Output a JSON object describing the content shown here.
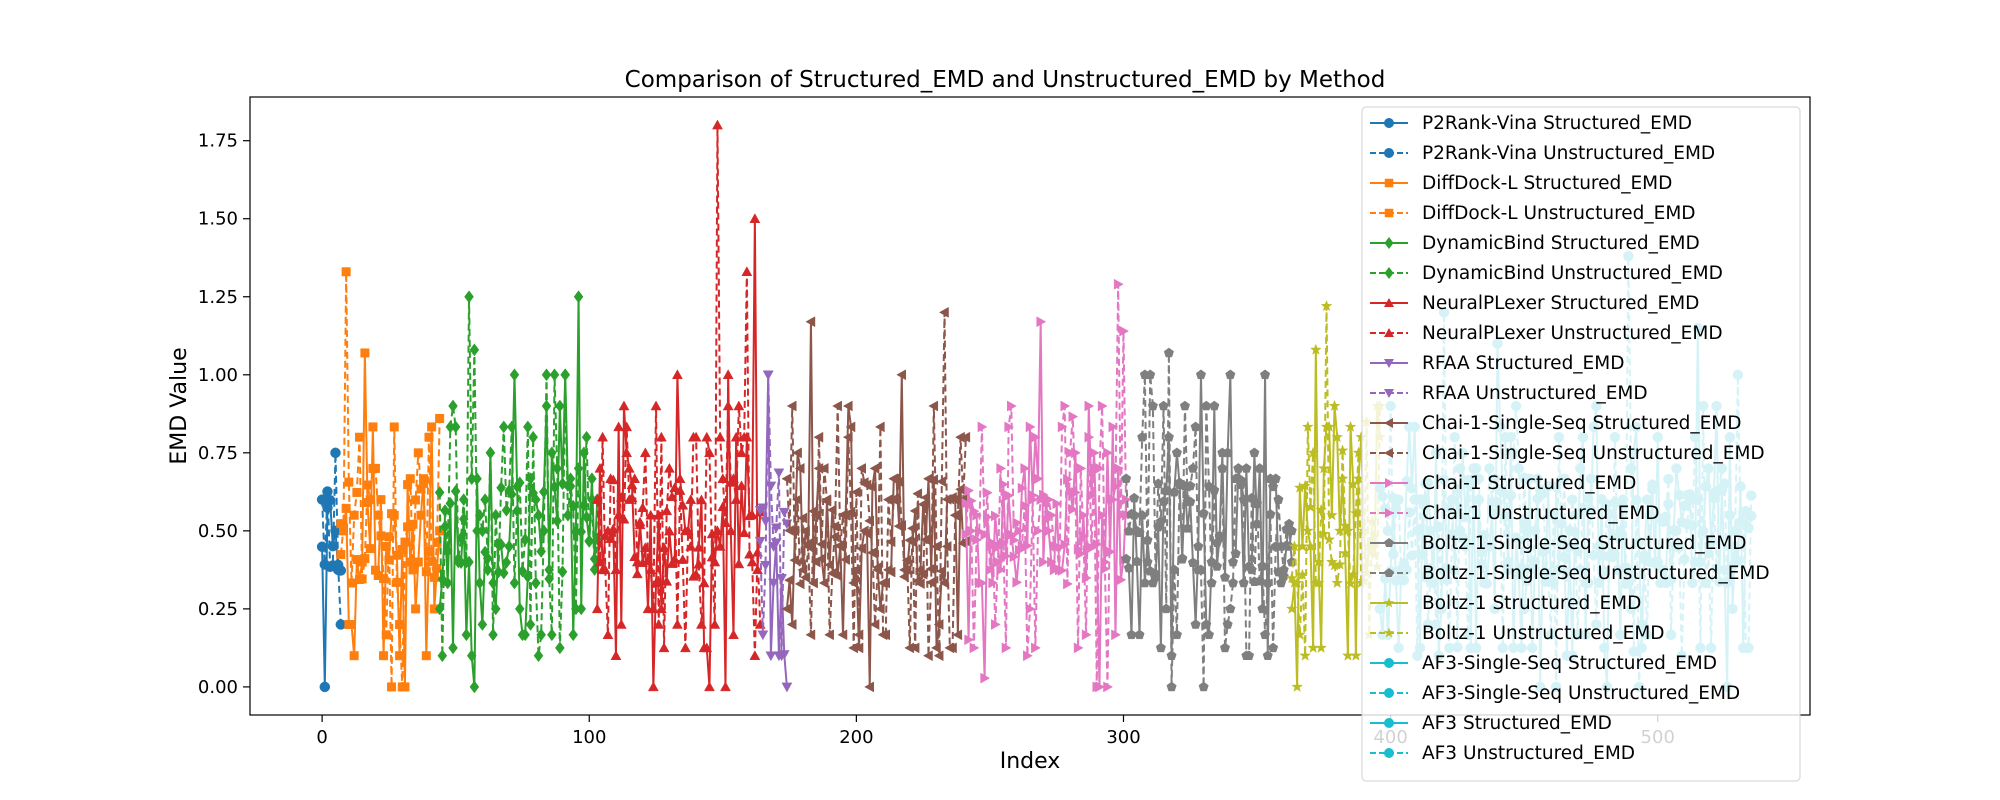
{
  "chart_data": {
    "type": "line",
    "title": "Comparison of Structured_EMD and Unstructured_EMD by Method",
    "xlabel": "Index",
    "ylabel": "EMD Value",
    "xlim": [
      -27,
      557
    ],
    "ylim": [
      -0.09,
      1.89
    ],
    "xticks": [
      0,
      100,
      200,
      300,
      400,
      500
    ],
    "yticks": [
      0.0,
      0.25,
      0.5,
      0.75,
      1.0,
      1.25,
      1.5,
      1.75
    ],
    "ytick_labels": [
      "0.00",
      "0.25",
      "0.50",
      "0.75",
      "1.00",
      "1.25",
      "1.50",
      "1.75"
    ],
    "grid": false,
    "legend_position": "top-right",
    "methods": [
      {
        "name": "P2Rank-Vina",
        "color": "#1f77b4",
        "marker": "circle",
        "start": 0,
        "end": 7,
        "max": 0.75,
        "seed": 11,
        "peaks": [
          [
            5,
            0.75
          ],
          [
            1,
            0.0
          ]
        ]
      },
      {
        "name": "DiffDock-L",
        "color": "#ff7f0e",
        "marker": "square",
        "start": 7,
        "end": 44,
        "max": 0.86,
        "seed": 23,
        "peaks": [
          [
            9,
            1.33
          ],
          [
            16,
            1.07
          ],
          [
            44,
            0.86
          ]
        ]
      },
      {
        "name": "DynamicBind",
        "color": "#2ca02c",
        "marker": "diamond",
        "start": 44,
        "end": 103,
        "max": 1.0,
        "seed": 37,
        "peaks": [
          [
            55,
            1.25
          ],
          [
            96,
            1.25
          ],
          [
            57,
            1.08
          ]
        ]
      },
      {
        "name": "NeuralPLexer",
        "color": "#d62728",
        "marker": "triangle-up",
        "start": 103,
        "end": 164,
        "max": 1.0,
        "seed": 51,
        "peaks": [
          [
            148,
            1.8
          ],
          [
            162,
            1.5
          ],
          [
            159,
            1.33
          ]
        ]
      },
      {
        "name": "RFAA",
        "color": "#9467bd",
        "marker": "triangle-down",
        "start": 164,
        "end": 174,
        "max": 0.75,
        "seed": 67,
        "peaks": [
          [
            167,
            1.0
          ]
        ]
      },
      {
        "name": "Chai-1-Single-Seq",
        "color": "#8c564b",
        "marker": "triangle-left",
        "start": 174,
        "end": 241,
        "max": 1.0,
        "seed": 73,
        "peaks": [
          [
            233,
            1.2
          ],
          [
            183,
            1.17
          ]
        ]
      },
      {
        "name": "Chai-1",
        "color": "#e377c2",
        "marker": "triangle-right",
        "start": 241,
        "end": 301,
        "max": 0.9,
        "seed": 89,
        "peaks": [
          [
            298,
            1.29
          ],
          [
            269,
            1.17
          ],
          [
            300,
            1.14
          ]
        ]
      },
      {
        "name": "Boltz-1-Single-Seq",
        "color": "#7f7f7f",
        "marker": "pentagon",
        "start": 301,
        "end": 363,
        "max": 1.0,
        "seed": 97,
        "peaks": [
          [
            317,
            1.07
          ],
          [
            329,
            1.0
          ]
        ]
      },
      {
        "name": "Boltz-1",
        "color": "#bcbd22",
        "marker": "star",
        "start": 363,
        "end": 396,
        "max": 0.9,
        "seed": 103,
        "peaks": [
          [
            376,
            1.22
          ],
          [
            372,
            1.08
          ]
        ]
      },
      {
        "name": "AF3-Single-Seq",
        "color": "#17becf",
        "marker": "circle",
        "start": 396,
        "end": 450,
        "max": 0.9,
        "seed": 113,
        "peaks": [
          [
            420,
            1.2
          ],
          [
            440,
            1.1
          ]
        ]
      },
      {
        "name": "AF3",
        "color": "#17becf",
        "marker": "circle",
        "start": 450,
        "end": 535,
        "max": 0.9,
        "seed": 127,
        "peaks": [
          [
            489,
            1.38
          ],
          [
            515,
            1.15
          ],
          [
            530,
            1.0
          ]
        ]
      }
    ],
    "legend": [
      {
        "label": "P2Rank-Vina Structured_EMD",
        "color": "#1f77b4",
        "marker": "circle",
        "dashed": false
      },
      {
        "label": "P2Rank-Vina Unstructured_EMD",
        "color": "#1f77b4",
        "marker": "circle",
        "dashed": true
      },
      {
        "label": "DiffDock-L Structured_EMD",
        "color": "#ff7f0e",
        "marker": "square",
        "dashed": false
      },
      {
        "label": "DiffDock-L Unstructured_EMD",
        "color": "#ff7f0e",
        "marker": "square",
        "dashed": true
      },
      {
        "label": "DynamicBind Structured_EMD",
        "color": "#2ca02c",
        "marker": "diamond",
        "dashed": false
      },
      {
        "label": "DynamicBind Unstructured_EMD",
        "color": "#2ca02c",
        "marker": "diamond",
        "dashed": true
      },
      {
        "label": "NeuralPLexer Structured_EMD",
        "color": "#d62728",
        "marker": "triangle-up",
        "dashed": false
      },
      {
        "label": "NeuralPLexer Unstructured_EMD",
        "color": "#d62728",
        "marker": "triangle-up",
        "dashed": true
      },
      {
        "label": "RFAA Structured_EMD",
        "color": "#9467bd",
        "marker": "triangle-down",
        "dashed": false
      },
      {
        "label": "RFAA Unstructured_EMD",
        "color": "#9467bd",
        "marker": "triangle-down",
        "dashed": true
      },
      {
        "label": "Chai-1-Single-Seq Structured_EMD",
        "color": "#8c564b",
        "marker": "triangle-left",
        "dashed": false
      },
      {
        "label": "Chai-1-Single-Seq Unstructured_EMD",
        "color": "#8c564b",
        "marker": "triangle-left",
        "dashed": true
      },
      {
        "label": "Chai-1 Structured_EMD",
        "color": "#e377c2",
        "marker": "triangle-right",
        "dashed": false
      },
      {
        "label": "Chai-1 Unstructured_EMD",
        "color": "#e377c2",
        "marker": "triangle-right",
        "dashed": true
      },
      {
        "label": "Boltz-1-Single-Seq Structured_EMD",
        "color": "#7f7f7f",
        "marker": "pentagon",
        "dashed": false
      },
      {
        "label": "Boltz-1-Single-Seq Unstructured_EMD",
        "color": "#7f7f7f",
        "marker": "pentagon",
        "dashed": true
      },
      {
        "label": "Boltz-1 Structured_EMD",
        "color": "#bcbd22",
        "marker": "star",
        "dashed": false
      },
      {
        "label": "Boltz-1 Unstructured_EMD",
        "color": "#bcbd22",
        "marker": "star",
        "dashed": true
      },
      {
        "label": "AF3-Single-Seq Structured_EMD",
        "color": "#17becf",
        "marker": "circle",
        "dashed": false
      },
      {
        "label": "AF3-Single-Seq Unstructured_EMD",
        "color": "#17becf",
        "marker": "circle",
        "dashed": true
      },
      {
        "label": "AF3 Structured_EMD",
        "color": "#17becf",
        "marker": "circle",
        "dashed": false
      },
      {
        "label": "AF3 Unstructured_EMD",
        "color": "#17becf",
        "marker": "circle",
        "dashed": true
      }
    ]
  }
}
